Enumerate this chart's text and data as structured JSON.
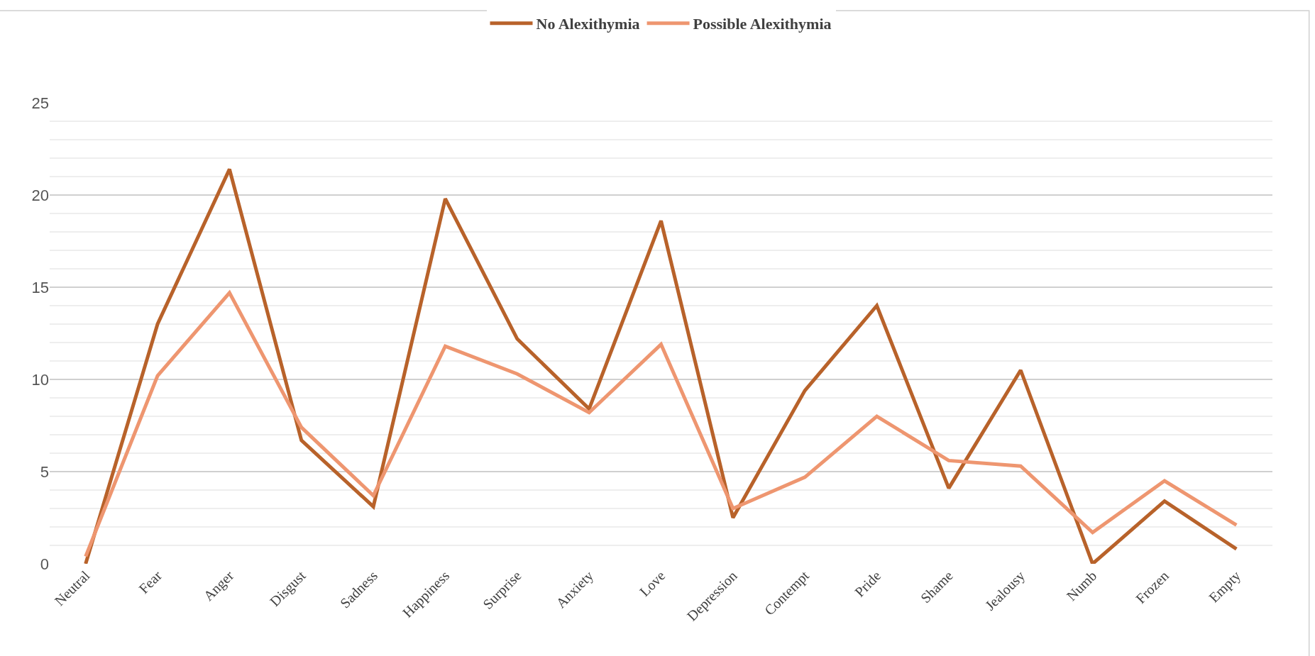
{
  "chart_data": {
    "type": "line",
    "categories": [
      "Neutral",
      "Fear",
      "Anger",
      "Disgust",
      "Sadness",
      "Happiness",
      "Surprise",
      "Anxiety",
      "Love",
      "Depression",
      "Contempt",
      "Pride",
      "Shame",
      "Jealousy",
      "Numb",
      "Frozen",
      "Empty"
    ],
    "series": [
      {
        "name": "No Alexithymia",
        "color": "#b8622a",
        "values": [
          0,
          13,
          21.4,
          6.7,
          3.1,
          19.8,
          12.2,
          8.4,
          18.6,
          2.5,
          9.4,
          14,
          4.1,
          10.5,
          0,
          3.4,
          0.8
        ]
      },
      {
        "name": "Possible Alexithymia",
        "color": "#ee9670",
        "values": [
          0.4,
          10.2,
          14.7,
          7.4,
          3.7,
          11.8,
          10.3,
          8.2,
          11.9,
          3.0,
          4.7,
          8.0,
          5.6,
          5.3,
          1.7,
          4.5,
          2.1
        ]
      }
    ],
    "ylim": [
      0,
      25
    ],
    "yticks": [
      0,
      5,
      10,
      15,
      20,
      25
    ],
    "grid": "y",
    "legend": "top",
    "marker": "none",
    "line_style": "solid"
  }
}
